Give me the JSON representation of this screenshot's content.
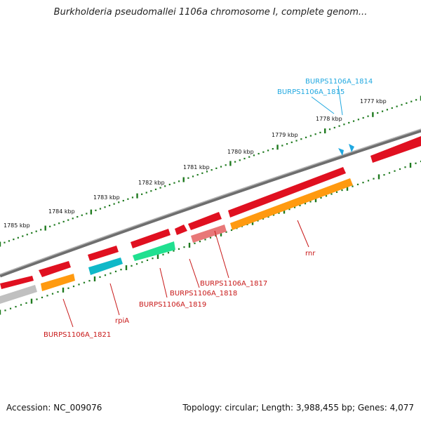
{
  "title": "Burkholderia pseudomallei 1106a chromosome I, complete genom...",
  "footer": {
    "accession": "Accession: NC_009076",
    "summary": "Topology: circular; Length: 3,988,455 bp; Genes: 4,077"
  },
  "colors": {
    "backbone": "#8a8a8a",
    "ruler": "#1f7a1f",
    "forward_gene": "#e01020",
    "orange_feature": "#ff9a10",
    "cyan_feature": "#10b8c8",
    "green_feature": "#20e090",
    "pink_feature": "#e87878",
    "grey_feature": "#c0c0c0",
    "red_label": "#c81818",
    "blue_label": "#20a8e0"
  },
  "ruler_labels": [
    "1777 kbp",
    "1778 kbp",
    "1779 kbp",
    "1780 kbp",
    "1781 kbp",
    "1782 kbp",
    "1783 kbp",
    "1784 kbp",
    "1785 kbp"
  ],
  "gene_labels": {
    "rnr": "rnr",
    "b1817": "BURPS1106A_1817",
    "b1818": "BURPS1106A_1818",
    "b1819": "BURPS1106A_1819",
    "rpiA": "rpiA",
    "b1821": "BURPS1106A_1821",
    "b1814": "BURPS1106A_1814",
    "b1815": "BURPS1106A_1815"
  }
}
